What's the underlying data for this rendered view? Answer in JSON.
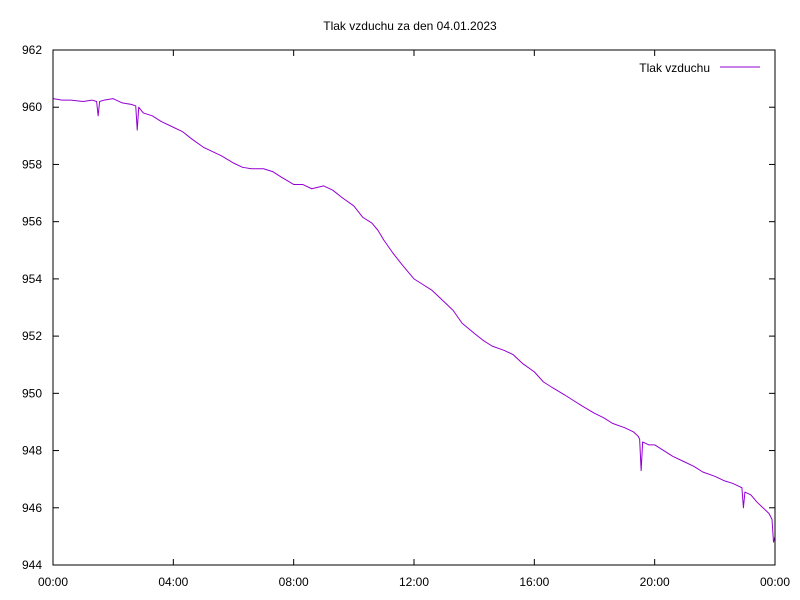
{
  "chart_data": {
    "type": "line",
    "title": "Tlak vzduchu za den 04.01.2023",
    "xlabel": "",
    "ylabel": "",
    "xlim": [
      0,
      24
    ],
    "ylim": [
      944,
      962
    ],
    "grid": false,
    "legend_position": "top-right",
    "x_ticks": [
      {
        "value": 0,
        "label": "00:00"
      },
      {
        "value": 4,
        "label": "04:00"
      },
      {
        "value": 8,
        "label": "08:00"
      },
      {
        "value": 12,
        "label": "12:00"
      },
      {
        "value": 16,
        "label": "16:00"
      },
      {
        "value": 20,
        "label": "20:00"
      },
      {
        "value": 24,
        "label": "00:00"
      }
    ],
    "y_ticks": [
      {
        "value": 944,
        "label": "944"
      },
      {
        "value": 946,
        "label": "946"
      },
      {
        "value": 948,
        "label": "948"
      },
      {
        "value": 950,
        "label": "950"
      },
      {
        "value": 952,
        "label": "952"
      },
      {
        "value": 954,
        "label": "954"
      },
      {
        "value": 956,
        "label": "956"
      },
      {
        "value": 958,
        "label": "958"
      },
      {
        "value": 960,
        "label": "960"
      },
      {
        "value": 962,
        "label": "962"
      }
    ],
    "series": [
      {
        "name": "Tlak vzduchu",
        "color": "#9400d3",
        "x": [
          0,
          0.3,
          0.6,
          1.0,
          1.3,
          1.45,
          1.5,
          1.55,
          1.7,
          2.0,
          2.3,
          2.6,
          2.75,
          2.8,
          2.85,
          3.0,
          3.3,
          3.6,
          4.0,
          4.3,
          4.6,
          5.0,
          5.3,
          5.6,
          6.0,
          6.3,
          6.6,
          7.0,
          7.3,
          7.6,
          8.0,
          8.3,
          8.6,
          9.0,
          9.3,
          9.6,
          10.0,
          10.3,
          10.6,
          10.8,
          11.0,
          11.3,
          11.6,
          12.0,
          12.3,
          12.6,
          13.0,
          13.3,
          13.6,
          14.0,
          14.3,
          14.6,
          15.0,
          15.3,
          15.6,
          16.0,
          16.3,
          16.6,
          17.0,
          17.3,
          17.6,
          18.0,
          18.3,
          18.6,
          19.0,
          19.3,
          19.45,
          19.5,
          19.55,
          19.6,
          19.8,
          20.0,
          20.3,
          20.6,
          21.0,
          21.3,
          21.6,
          22.0,
          22.3,
          22.6,
          22.8,
          22.9,
          22.95,
          23.0,
          23.2,
          23.4,
          23.6,
          23.8,
          23.9,
          23.95,
          24.0
        ],
        "values": [
          960.3,
          960.25,
          960.25,
          960.2,
          960.25,
          960.2,
          959.7,
          960.2,
          960.25,
          960.3,
          960.15,
          960.1,
          960.05,
          959.2,
          960.0,
          959.8,
          959.7,
          959.5,
          959.3,
          959.15,
          958.9,
          958.6,
          958.45,
          958.3,
          958.05,
          957.9,
          957.85,
          957.85,
          957.75,
          957.55,
          957.3,
          957.3,
          957.15,
          957.25,
          957.1,
          956.85,
          956.55,
          956.15,
          955.95,
          955.7,
          955.35,
          954.9,
          954.5,
          954.0,
          953.8,
          953.6,
          953.2,
          952.9,
          952.45,
          952.1,
          951.85,
          951.65,
          951.5,
          951.35,
          951.05,
          950.75,
          950.4,
          950.2,
          949.95,
          949.75,
          949.55,
          949.3,
          949.15,
          948.95,
          948.8,
          948.65,
          948.5,
          948.4,
          947.3,
          948.3,
          948.2,
          948.2,
          948.0,
          947.8,
          947.6,
          947.45,
          947.25,
          947.1,
          946.95,
          946.85,
          946.75,
          946.7,
          946.0,
          946.55,
          946.45,
          946.2,
          946.0,
          945.8,
          945.6,
          944.8,
          945.0
        ]
      }
    ]
  }
}
